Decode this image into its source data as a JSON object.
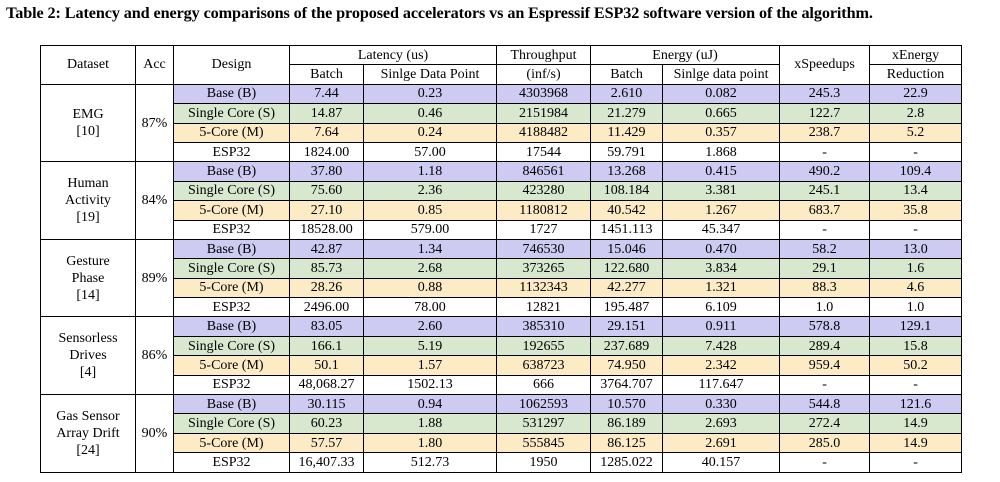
{
  "caption": "Table 2: Latency and energy comparisons of the proposed accelerators vs an Espressif ESP32 software version of the algorithm.",
  "headers": {
    "dataset": "Dataset",
    "acc": "Acc",
    "design": "Design",
    "latency": "Latency (us)",
    "latency_batch": "Batch",
    "latency_single": "Sinlge Data Point",
    "throughput": "Throughput",
    "throughput_unit": "(inf/s)",
    "energy": "Energy (uJ)",
    "energy_batch": "Batch",
    "energy_single": "Sinlge data point",
    "xspeedups": "xSpeedups",
    "xenergy_line1": "xEnergy",
    "xenergy_line2": "Reduction"
  },
  "groups": [
    {
      "name_lines": [
        "EMG",
        "[10]"
      ],
      "acc": "87%",
      "rows": [
        {
          "design": "Base (B)",
          "lat_batch": "7.44",
          "lat_single": "0.23",
          "throughput": "4303968",
          "en_batch": "2.610",
          "en_single": "0.082",
          "speedup": "245.3",
          "energy_red": "22.9",
          "bold": [
            1,
            1,
            1,
            1,
            1,
            0,
            0
          ]
        },
        {
          "design": "Single Core (S)",
          "lat_batch": "14.87",
          "lat_single": "0.46",
          "throughput": "2151984",
          "en_batch": "21.279",
          "en_single": "0.665",
          "speedup": "122.7",
          "energy_red": "2.8",
          "bold": [
            0,
            0,
            0,
            0,
            0,
            0,
            0
          ]
        },
        {
          "design": "5-Core (M)",
          "lat_batch": "7.64",
          "lat_single": "0.24",
          "throughput": "4188482",
          "en_batch": "11.429",
          "en_single": "0.357",
          "speedup": "238.7",
          "energy_red": "5.2",
          "bold": [
            0,
            0,
            0,
            0,
            0,
            0,
            0
          ]
        },
        {
          "design": "ESP32",
          "lat_batch": "1824.00",
          "lat_single": "57.00",
          "throughput": "17544",
          "en_batch": "59.791",
          "en_single": "1.868",
          "speedup": "-",
          "energy_red": "-",
          "bold": [
            0,
            0,
            0,
            0,
            0,
            0,
            0
          ]
        }
      ]
    },
    {
      "name_lines": [
        "Human",
        "Activity",
        "[19]"
      ],
      "acc": "84%",
      "rows": [
        {
          "design": "Base (B)",
          "lat_batch": "37.80",
          "lat_single": "1.18",
          "throughput": "846561",
          "en_batch": "13.268",
          "en_single": "0.415",
          "speedup": "490.2",
          "energy_red": "109.4",
          "bold": [
            0,
            0,
            0,
            1,
            1,
            0,
            0
          ]
        },
        {
          "design": "Single Core (S)",
          "lat_batch": "75.60",
          "lat_single": "2.36",
          "throughput": "423280",
          "en_batch": "108.184",
          "en_single": "3.381",
          "speedup": "245.1",
          "energy_red": "13.4",
          "bold": [
            0,
            0,
            0,
            0,
            0,
            0,
            0
          ]
        },
        {
          "design": "5-Core (M)",
          "lat_batch": "27.10",
          "lat_single": "0.85",
          "throughput": "1180812",
          "en_batch": "40.542",
          "en_single": "1.267",
          "speedup": "683.7",
          "energy_red": "35.8",
          "bold": [
            1,
            1,
            1,
            0,
            0,
            0,
            0
          ]
        },
        {
          "design": "ESP32",
          "lat_batch": "18528.00",
          "lat_single": "579.00",
          "throughput": "1727",
          "en_batch": "1451.113",
          "en_single": "45.347",
          "speedup": "-",
          "energy_red": "-",
          "bold": [
            0,
            0,
            0,
            0,
            0,
            0,
            0
          ]
        }
      ]
    },
    {
      "name_lines": [
        "Gesture",
        "Phase",
        "[14]"
      ],
      "acc": "89%",
      "rows": [
        {
          "design": "Base (B)",
          "lat_batch": "42.87",
          "lat_single": "1.34",
          "throughput": "746530",
          "en_batch": "15.046",
          "en_single": "0.470",
          "speedup": "58.2",
          "energy_red": "13.0",
          "bold": [
            0,
            0,
            0,
            1,
            1,
            0,
            0
          ]
        },
        {
          "design": "Single Core (S)",
          "lat_batch": "85.73",
          "lat_single": "2.68",
          "throughput": "373265",
          "en_batch": "122.680",
          "en_single": "3.834",
          "speedup": "29.1",
          "energy_red": "1.6",
          "bold": [
            0,
            0,
            0,
            0,
            0,
            0,
            0
          ]
        },
        {
          "design": "5-Core (M)",
          "lat_batch": "28.26",
          "lat_single": "0.88",
          "throughput": "1132343",
          "en_batch": "42.277",
          "en_single": "1.321",
          "speedup": "88.3",
          "energy_red": "4.6",
          "bold": [
            1,
            1,
            1,
            0,
            0,
            0,
            0
          ]
        },
        {
          "design": "ESP32",
          "lat_batch": "2496.00",
          "lat_single": "78.00",
          "throughput": "12821",
          "en_batch": "195.487",
          "en_single": "6.109",
          "speedup": "1.0",
          "energy_red": "1.0",
          "bold": [
            0,
            0,
            0,
            0,
            0,
            0,
            0
          ]
        }
      ]
    },
    {
      "name_lines": [
        "Sensorless",
        "Drives",
        "[4]"
      ],
      "acc": "86%",
      "rows": [
        {
          "design": "Base (B)",
          "lat_batch": "83.05",
          "lat_single": "2.60",
          "throughput": "385310",
          "en_batch": "29.151",
          "en_single": "0.911",
          "speedup": "578.8",
          "energy_red": "129.1",
          "bold": [
            0,
            0,
            0,
            1,
            1,
            0,
            0
          ]
        },
        {
          "design": "Single Core (S)",
          "lat_batch": "166.1",
          "lat_single": "5.19",
          "throughput": "192655",
          "en_batch": "237.689",
          "en_single": "7.428",
          "speedup": "289.4",
          "energy_red": "15.8",
          "bold": [
            0,
            0,
            0,
            0,
            0,
            0,
            0
          ]
        },
        {
          "design": "5-Core (M)",
          "lat_batch": "50.1",
          "lat_single": "1.57",
          "throughput": "638723",
          "en_batch": "74.950",
          "en_single": "2.342",
          "speedup": "959.4",
          "energy_red": "50.2",
          "bold": [
            1,
            1,
            1,
            1,
            1,
            0,
            0
          ]
        },
        {
          "design": "ESP32",
          "lat_batch": "48,068.27",
          "lat_single": "1502.13",
          "throughput": "666",
          "en_batch": "3764.707",
          "en_single": "117.647",
          "speedup": "-",
          "energy_red": "-",
          "bold": [
            0,
            0,
            0,
            0,
            0,
            0,
            0
          ]
        }
      ]
    },
    {
      "name_lines": [
        "Gas Sensor",
        "Array Drift",
        "[24]"
      ],
      "acc": "90%",
      "rows": [
        {
          "design": "Base (B)",
          "lat_batch": "30.115",
          "lat_single": "0.94",
          "throughput": "1062593",
          "en_batch": "10.570",
          "en_single": "0.330",
          "speedup": "544.8",
          "energy_red": "121.6",
          "bold": [
            1,
            1,
            1,
            1,
            1,
            0,
            0
          ]
        },
        {
          "design": "Single Core (S)",
          "lat_batch": "60.23",
          "lat_single": "1.88",
          "throughput": "531297",
          "en_batch": "86.189",
          "en_single": "2.693",
          "speedup": "272.4",
          "energy_red": "14.9",
          "bold": [
            0,
            0,
            0,
            0,
            0,
            0,
            0
          ]
        },
        {
          "design": "5-Core (M)",
          "lat_batch": "57.57",
          "lat_single": "1.80",
          "throughput": "555845",
          "en_batch": "86.125",
          "en_single": "2.691",
          "speedup": "285.0",
          "energy_red": "14.9",
          "bold": [
            0,
            0,
            0,
            0,
            0,
            0,
            0
          ]
        },
        {
          "design": "ESP32",
          "lat_batch": "16,407.33",
          "lat_single": "512.73",
          "throughput": "1950",
          "en_batch": "1285.022",
          "en_single": "40.157",
          "speedup": "-",
          "energy_red": "-",
          "bold": [
            0,
            0,
            0,
            0,
            0,
            0,
            0
          ]
        }
      ]
    }
  ]
}
